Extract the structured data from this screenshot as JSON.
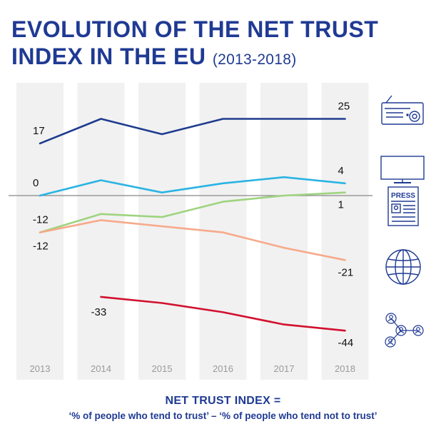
{
  "title": {
    "line1": "EVOLUTION OF THE NET TRUST",
    "line2": "INDEX IN THE EU",
    "range": "(2013-2018)"
  },
  "chart_data": {
    "type": "line",
    "categories": [
      "2013",
      "2014",
      "2015",
      "2016",
      "2017",
      "2018"
    ],
    "ylim": [
      -50,
      32
    ],
    "zero_line": true,
    "series": [
      {
        "name": "Radio",
        "icon": "radio-icon",
        "color": "#1f3b8f",
        "values": [
          17,
          25,
          20,
          25,
          25,
          25
        ],
        "labels": [
          {
            "index": 0,
            "text": "17"
          },
          {
            "index": 5,
            "text": "25"
          }
        ]
      },
      {
        "name": "Television",
        "icon": "television-icon",
        "color": "#2ab4e3",
        "values": [
          0,
          5,
          1,
          4,
          6,
          4
        ],
        "labels": [
          {
            "index": 0,
            "text": "0"
          },
          {
            "index": 5,
            "text": "4"
          }
        ]
      },
      {
        "name": "Written press",
        "icon": "press-icon",
        "color": "#9ed47f",
        "values": [
          -12,
          -6,
          -7,
          -2,
          0,
          1
        ],
        "labels": [
          {
            "index": 0,
            "text": "-12"
          },
          {
            "index": 5,
            "text": "1"
          }
        ]
      },
      {
        "name": "Internet",
        "icon": "globe-icon",
        "color": "#f7a98a",
        "values": [
          -12,
          -8,
          -10,
          -12,
          -17,
          -21
        ],
        "labels": [
          {
            "index": 0,
            "text": "-12"
          },
          {
            "index": 5,
            "text": "-21"
          }
        ]
      },
      {
        "name": "Online social networks",
        "icon": "social-network-icon",
        "color": "#d2102e",
        "values": [
          null,
          -33,
          -35,
          -38,
          -42,
          -44
        ],
        "labels": [
          {
            "index": 1,
            "text": "-33"
          },
          {
            "index": 5,
            "text": "-44"
          }
        ]
      }
    ]
  },
  "footer": {
    "heading": "NET TRUST INDEX =",
    "formula": "‘% of people who tend to trust’ – ‘% of people who tend not to trust’"
  },
  "colors": {
    "title": "#1f3a93",
    "axis_zero": "#888888",
    "column_fill": "#f1f1f1"
  }
}
